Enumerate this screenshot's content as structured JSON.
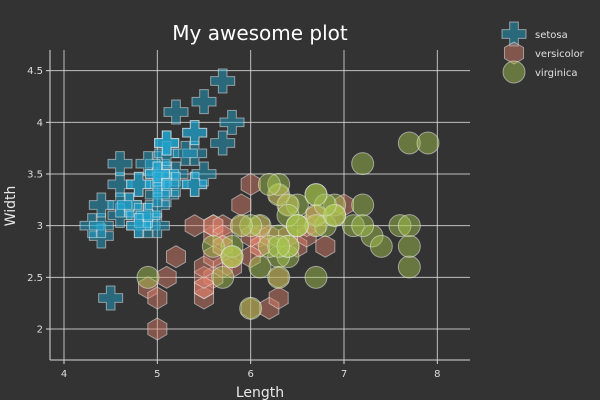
{
  "chart_data": {
    "type": "scatter",
    "title": "My awesome plot",
    "xlabel": "Length",
    "ylabel": "Width",
    "xlim": [
      3.85,
      8.35
    ],
    "ylim": [
      1.7,
      4.7
    ],
    "x_ticks": [
      4,
      5,
      6,
      7,
      8
    ],
    "y_ticks": [
      2,
      2.5,
      3,
      3.5,
      4,
      4.5
    ],
    "x_tick_labels": [
      "4",
      "5",
      "6",
      "7",
      "8"
    ],
    "y_tick_labels": [
      "2",
      "2.5",
      "3",
      "3.5",
      "4",
      "4.5"
    ],
    "grid": true,
    "legend_position": "top-right, outside plot",
    "background": "#333333",
    "grid_color": "#d8d8d8",
    "series": [
      {
        "name": "setosa",
        "marker": "cross",
        "color": "#1ea8d4",
        "points": [
          [
            5.1,
            3.5
          ],
          [
            4.9,
            3.0
          ],
          [
            4.7,
            3.2
          ],
          [
            4.6,
            3.1
          ],
          [
            5.0,
            3.6
          ],
          [
            5.4,
            3.9
          ],
          [
            4.6,
            3.4
          ],
          [
            5.0,
            3.4
          ],
          [
            4.4,
            2.9
          ],
          [
            4.9,
            3.1
          ],
          [
            5.4,
            3.7
          ],
          [
            4.8,
            3.4
          ],
          [
            4.8,
            3.0
          ],
          [
            4.3,
            3.0
          ],
          [
            5.8,
            4.0
          ],
          [
            5.7,
            4.4
          ],
          [
            5.4,
            3.9
          ],
          [
            5.1,
            3.5
          ],
          [
            5.7,
            3.8
          ],
          [
            5.1,
            3.8
          ],
          [
            5.4,
            3.4
          ],
          [
            5.1,
            3.7
          ],
          [
            4.6,
            3.6
          ],
          [
            5.1,
            3.3
          ],
          [
            4.8,
            3.4
          ],
          [
            5.0,
            3.0
          ],
          [
            5.0,
            3.4
          ],
          [
            5.2,
            3.5
          ],
          [
            5.2,
            3.4
          ],
          [
            4.7,
            3.2
          ],
          [
            4.8,
            3.1
          ],
          [
            5.4,
            3.4
          ],
          [
            5.2,
            4.1
          ],
          [
            5.5,
            4.2
          ],
          [
            4.9,
            3.1
          ],
          [
            5.0,
            3.2
          ],
          [
            5.5,
            3.5
          ],
          [
            4.9,
            3.6
          ],
          [
            4.4,
            3.0
          ],
          [
            5.1,
            3.4
          ],
          [
            5.0,
            3.5
          ],
          [
            4.5,
            2.3
          ],
          [
            4.4,
            3.2
          ],
          [
            5.0,
            3.5
          ],
          [
            5.1,
            3.8
          ],
          [
            4.8,
            3.0
          ],
          [
            5.1,
            3.8
          ],
          [
            4.6,
            3.2
          ],
          [
            5.3,
            3.7
          ],
          [
            5.0,
            3.3
          ]
        ]
      },
      {
        "name": "versicolor",
        "marker": "hexagon",
        "color": "#e0806a",
        "points": [
          [
            7.0,
            3.2
          ],
          [
            6.4,
            3.2
          ],
          [
            6.9,
            3.1
          ],
          [
            5.5,
            2.3
          ],
          [
            6.5,
            2.8
          ],
          [
            5.7,
            2.8
          ],
          [
            6.3,
            3.3
          ],
          [
            4.9,
            2.4
          ],
          [
            6.6,
            2.9
          ],
          [
            5.2,
            2.7
          ],
          [
            5.0,
            2.0
          ],
          [
            5.9,
            3.0
          ],
          [
            6.0,
            2.2
          ],
          [
            6.1,
            2.9
          ],
          [
            5.6,
            2.9
          ],
          [
            6.7,
            3.1
          ],
          [
            5.6,
            3.0
          ],
          [
            5.8,
            2.7
          ],
          [
            6.2,
            2.2
          ],
          [
            5.6,
            2.5
          ],
          [
            5.9,
            3.2
          ],
          [
            6.1,
            2.8
          ],
          [
            6.3,
            2.5
          ],
          [
            6.1,
            2.8
          ],
          [
            6.4,
            2.9
          ],
          [
            6.6,
            3.0
          ],
          [
            6.8,
            2.8
          ],
          [
            6.7,
            3.0
          ],
          [
            6.0,
            2.9
          ],
          [
            5.7,
            2.6
          ],
          [
            5.5,
            2.4
          ],
          [
            5.5,
            2.4
          ],
          [
            5.8,
            2.7
          ],
          [
            6.0,
            2.7
          ],
          [
            5.4,
            3.0
          ],
          [
            6.0,
            3.4
          ],
          [
            6.7,
            3.1
          ],
          [
            6.3,
            2.3
          ],
          [
            5.6,
            3.0
          ],
          [
            5.5,
            2.5
          ],
          [
            5.5,
            2.6
          ],
          [
            6.1,
            3.0
          ],
          [
            5.8,
            2.6
          ],
          [
            5.0,
            2.3
          ],
          [
            5.6,
            2.7
          ],
          [
            5.7,
            3.0
          ],
          [
            5.7,
            2.9
          ],
          [
            6.2,
            2.9
          ],
          [
            5.1,
            2.5
          ],
          [
            5.7,
            2.8
          ]
        ]
      },
      {
        "name": "virginica",
        "marker": "circle",
        "color": "#a9c84e",
        "points": [
          [
            6.3,
            3.3
          ],
          [
            5.8,
            2.7
          ],
          [
            7.1,
            3.0
          ],
          [
            6.3,
            2.9
          ],
          [
            6.5,
            3.0
          ],
          [
            7.6,
            3.0
          ],
          [
            4.9,
            2.5
          ],
          [
            7.3,
            2.9
          ],
          [
            6.7,
            2.5
          ],
          [
            7.2,
            3.6
          ],
          [
            6.5,
            3.2
          ],
          [
            6.4,
            2.7
          ],
          [
            6.8,
            3.0
          ],
          [
            5.7,
            2.5
          ],
          [
            5.8,
            2.8
          ],
          [
            6.4,
            3.2
          ],
          [
            6.5,
            3.0
          ],
          [
            7.7,
            3.8
          ],
          [
            7.7,
            2.6
          ],
          [
            6.0,
            2.2
          ],
          [
            6.9,
            3.2
          ],
          [
            5.6,
            2.8
          ],
          [
            7.7,
            2.8
          ],
          [
            6.3,
            2.7
          ],
          [
            6.7,
            3.3
          ],
          [
            7.2,
            3.2
          ],
          [
            6.2,
            2.8
          ],
          [
            6.1,
            3.0
          ],
          [
            6.4,
            2.8
          ],
          [
            7.2,
            3.0
          ],
          [
            7.4,
            2.8
          ],
          [
            7.9,
            3.8
          ],
          [
            6.4,
            2.8
          ],
          [
            6.3,
            2.8
          ],
          [
            6.1,
            2.6
          ],
          [
            7.7,
            3.0
          ],
          [
            6.3,
            3.4
          ],
          [
            6.4,
            3.1
          ],
          [
            6.0,
            3.0
          ],
          [
            6.9,
            3.1
          ],
          [
            6.7,
            3.1
          ],
          [
            6.9,
            3.1
          ],
          [
            5.8,
            2.7
          ],
          [
            6.8,
            3.2
          ],
          [
            6.7,
            3.3
          ],
          [
            6.7,
            3.0
          ],
          [
            6.3,
            2.5
          ],
          [
            6.5,
            3.0
          ],
          [
            6.2,
            3.4
          ],
          [
            5.9,
            3.0
          ]
        ]
      }
    ]
  }
}
